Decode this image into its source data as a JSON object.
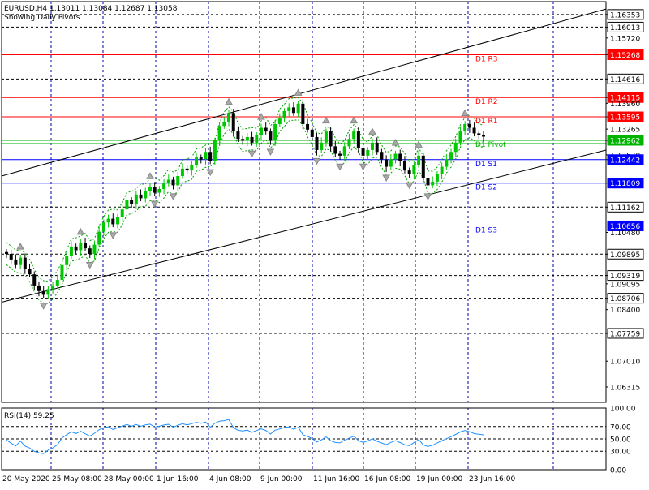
{
  "header": {
    "symbol_line": "EURUSD,H4  1.13011 1.13084 1.12687 1.13058",
    "subtitle": "Showing Daily Pivots"
  },
  "colors": {
    "background": "#ffffff",
    "axis": "#000000",
    "grid": "#0000aa",
    "bull": "#00c800",
    "bear": "#000000",
    "resistance": "#ff0000",
    "pivot": "#00b400",
    "support": "#0000ff",
    "label_box": "#0000ff",
    "label_text": "#ffffff",
    "channel": "#000000",
    "envelope": "#00a000",
    "rsi": "#1e90ff",
    "fractal": "#aaaaaa"
  },
  "price_axis": {
    "labels": [
      "1.16353",
      "1.16013",
      "1.15720",
      "1.15268",
      "1.14616",
      "1.14115",
      "1.13960",
      "1.13595",
      "1.13265",
      "1.12962",
      "1.12570",
      "1.12442",
      "1.11809",
      "1.11162",
      "1.10656",
      "1.10480",
      "1.09895",
      "1.09319",
      "1.09095",
      "1.08706",
      "1.08400",
      "1.07759",
      "1.07010",
      "1.06315"
    ],
    "boxed": [
      "1.16353",
      "1.16013",
      "1.15268",
      "1.14616",
      "1.14115",
      "1.13595",
      "1.12962",
      "1.12442",
      "1.11809",
      "1.11162",
      "1.10656",
      "1.09895",
      "1.09319",
      "1.08706",
      "1.07759"
    ],
    "range": [
      1.059,
      1.167
    ]
  },
  "pivot_lines": [
    {
      "label": "D1 R3",
      "value": "1.15268",
      "kind": "resistance"
    },
    {
      "label": "D1 R2",
      "value": "1.14115",
      "kind": "resistance"
    },
    {
      "label": "D1 R1",
      "value": "1.13595",
      "kind": "resistance"
    },
    {
      "label": "D1 Pivot",
      "value": "1.12962",
      "kind": "pivot"
    },
    {
      "label": "D1 S1",
      "value": "1.12442",
      "kind": "support"
    },
    {
      "label": "D1 S2",
      "value": "1.11809",
      "kind": "support"
    },
    {
      "label": "D1 S3",
      "value": "1.10656",
      "kind": "support"
    }
  ],
  "dashed_levels": [
    "1.16353",
    "1.16013",
    "1.14616",
    "1.11162",
    "1.09895",
    "1.09319",
    "1.08706",
    "1.07759"
  ],
  "time_axis": [
    "20 May 2020",
    "25 May 08:00",
    "28 May 00:00",
    "1 Jun 16:00",
    "4 Jun 08:00",
    "9 Jun 00:00",
    "11 Jun 16:00",
    "16 Jun 08:00",
    "19 Jun 00:00",
    "23 Jun 16:00"
  ],
  "rsi": {
    "label": "RSI(14) 59.25",
    "levels": [
      "70.00",
      "50.00",
      "30.00"
    ],
    "axis_labels": [
      "100.00",
      "70.00",
      "50.00",
      "30.00",
      "0.00"
    ],
    "current": 59.25
  },
  "chart_data": {
    "type": "candlestick",
    "symbol": "EURUSD",
    "timeframe": "H4",
    "last_bar": {
      "open": 1.13011,
      "high": 1.13084,
      "low": 1.12687,
      "close": 1.13058
    },
    "closes": [
      1.099,
      1.0975,
      1.096,
      1.098,
      1.095,
      1.0935,
      1.0905,
      1.089,
      1.088,
      1.0895,
      1.0905,
      1.092,
      1.096,
      1.0985,
      1.101,
      1.1,
      1.102,
      1.1005,
      1.099,
      1.1015,
      1.105,
      1.1075,
      1.1085,
      1.107,
      1.109,
      1.111,
      1.1135,
      1.1125,
      1.115,
      1.114,
      1.116,
      1.117,
      1.1155,
      1.1165,
      1.118,
      1.119,
      1.1175,
      1.12,
      1.122,
      1.1215,
      1.123,
      1.125,
      1.1245,
      1.1265,
      1.124,
      1.1295,
      1.1335,
      1.1345,
      1.137,
      1.132,
      1.13,
      1.1295,
      1.1305,
      1.129,
      1.131,
      1.133,
      1.132,
      1.1295,
      1.134,
      1.1355,
      1.1375,
      1.1385,
      1.137,
      1.1395,
      1.134,
      1.1325,
      1.1305,
      1.127,
      1.129,
      1.132,
      1.128,
      1.126,
      1.1255,
      1.128,
      1.13,
      1.132,
      1.1275,
      1.1255,
      1.127,
      1.129,
      1.1265,
      1.1245,
      1.1225,
      1.1245,
      1.126,
      1.124,
      1.1215,
      1.1205,
      1.123,
      1.1255,
      1.1195,
      1.1175,
      1.1185,
      1.1205,
      1.1225,
      1.1245,
      1.1265,
      1.129,
      1.132,
      1.134,
      1.133,
      1.1315,
      1.131,
      1.1306
    ],
    "open": 1.0995,
    "channel": {
      "upper": [
        1.12,
        1.165
      ],
      "lower": [
        1.086,
        1.127
      ]
    },
    "price_range": [
      1.059,
      1.167
    ]
  }
}
